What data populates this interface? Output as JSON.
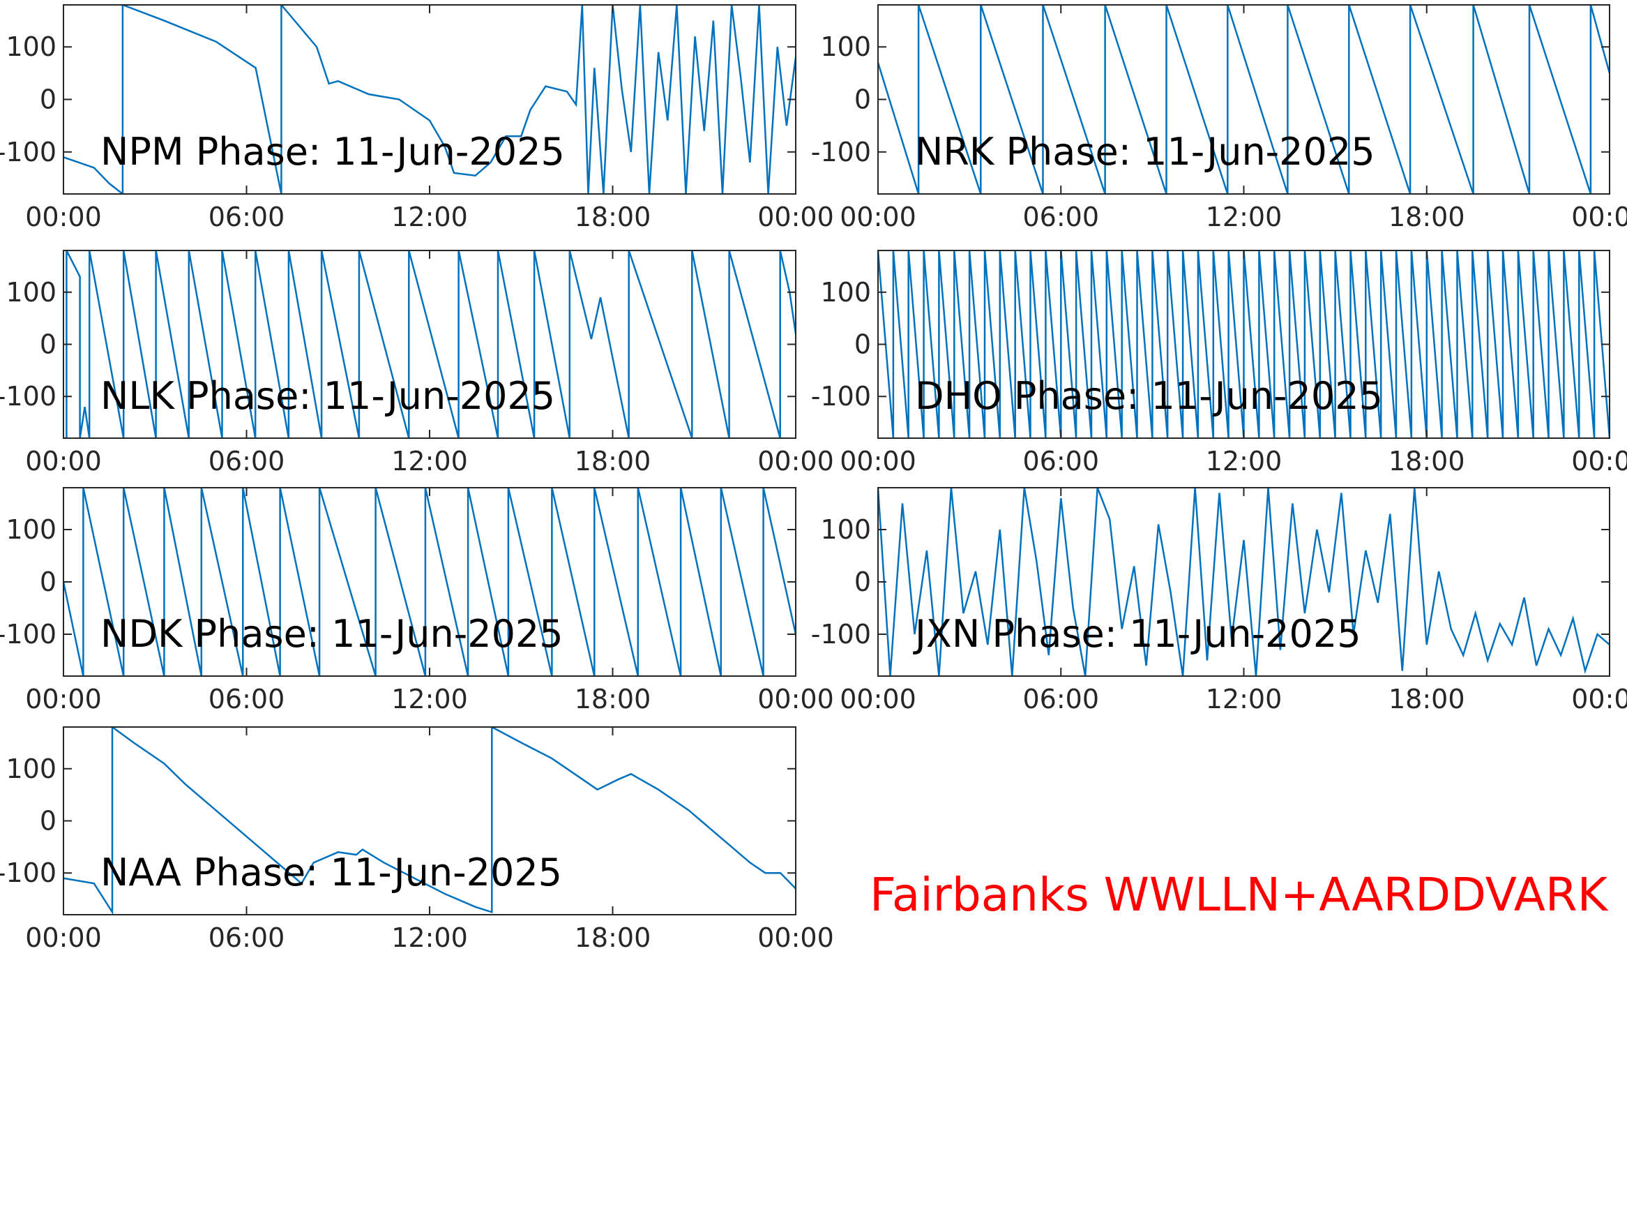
{
  "chart_data": [
    {
      "type": "line",
      "title": "NPM Phase: 11-Jun-2025",
      "color": "#0072BD",
      "x": [
        0,
        0.5,
        1,
        1.5,
        1.94,
        1.94,
        3.3,
        5,
        6.3,
        7.14,
        7.14,
        8.3,
        8.7,
        9,
        10,
        11,
        12,
        12.5,
        12.8,
        13.5,
        14,
        14.5,
        15,
        15.3,
        15.8,
        16.5,
        16.8,
        17,
        17.2,
        17.4,
        17.7,
        18,
        18.3,
        18.6,
        18.9,
        19.2,
        19.5,
        19.8,
        20.1,
        20.4,
        20.7,
        21,
        21.3,
        21.6,
        21.9,
        22.2,
        22.5,
        22.8,
        23.1,
        23.4,
        23.7,
        24
      ],
      "values": [
        -110,
        -120,
        -130,
        -160,
        -180,
        180,
        150,
        110,
        60,
        -180,
        180,
        100,
        30,
        35,
        10,
        0,
        -40,
        -90,
        -140,
        -145,
        -120,
        -70,
        -70,
        -20,
        25,
        15,
        -10,
        180,
        -180,
        60,
        -180,
        180,
        20,
        -100,
        180,
        -180,
        90,
        -40,
        180,
        -180,
        120,
        -60,
        150,
        -180,
        180,
        40,
        -120,
        180,
        -180,
        100,
        -50,
        80
      ],
      "xlim": [
        0,
        24
      ],
      "xticks": [
        {
          "value": 0,
          "label": "00:00"
        },
        {
          "value": 6,
          "label": "06:00"
        },
        {
          "value": 12,
          "label": "12:00"
        },
        {
          "value": 18,
          "label": "18:00"
        },
        {
          "value": 24,
          "label": "00:00"
        }
      ],
      "ylim": [
        -180,
        180
      ],
      "yticks": [
        -100,
        0,
        100
      ]
    },
    {
      "type": "line",
      "title": "NRK Phase: 11-Jun-2025",
      "color": "#0072BD",
      "x": [
        0,
        1.33,
        1.33,
        3.37,
        3.37,
        5.41,
        5.41,
        7.45,
        7.45,
        9.46,
        9.46,
        11.47,
        11.47,
        13.44,
        13.44,
        15.45,
        15.45,
        17.46,
        17.46,
        19.53,
        19.53,
        21.37,
        21.37,
        23.38,
        23.38,
        24
      ],
      "values": [
        70,
        -180,
        180,
        -180,
        180,
        -180,
        180,
        -180,
        180,
        -180,
        180,
        -180,
        180,
        -180,
        180,
        -180,
        180,
        -180,
        180,
        -180,
        180,
        -180,
        180,
        -180,
        180,
        50
      ],
      "xlim": [
        0,
        24
      ],
      "xticks": [
        {
          "value": 0,
          "label": "00:00"
        },
        {
          "value": 6,
          "label": "06:00"
        },
        {
          "value": 12,
          "label": "12:00"
        },
        {
          "value": 18,
          "label": "18:00"
        },
        {
          "value": 24,
          "label": "00:00"
        }
      ],
      "ylim": [
        -180,
        180
      ],
      "yticks": [
        -100,
        0,
        100
      ]
    },
    {
      "type": "line",
      "title": "NLK Phase: 11-Jun-2025",
      "color": "#0072BD",
      "x": [
        0,
        0.1,
        0.1,
        0.54,
        0.54,
        0.7,
        0.85,
        0.85,
        1.97,
        1.97,
        3.03,
        3.03,
        4.11,
        4.11,
        5.2,
        5.2,
        6.29,
        6.29,
        7.38,
        7.38,
        8.46,
        8.46,
        9.69,
        9.69,
        11.32,
        11.32,
        12.95,
        12.95,
        14.24,
        14.24,
        15.43,
        15.43,
        16.59,
        16.59,
        17.3,
        17.6,
        18.53,
        18.53,
        20.6,
        20.6,
        21.82,
        21.82,
        23.49,
        23.49,
        23.8,
        24
      ],
      "values": [
        -180,
        -180,
        180,
        130,
        -180,
        -120,
        -180,
        180,
        -180,
        180,
        -180,
        180,
        -180,
        180,
        -180,
        180,
        -180,
        180,
        -180,
        180,
        -180,
        180,
        -180,
        180,
        -180,
        180,
        -180,
        180,
        -180,
        180,
        -180,
        180,
        -180,
        180,
        10,
        90,
        -180,
        180,
        -180,
        180,
        -180,
        180,
        -180,
        180,
        100,
        20
      ],
      "xlim": [
        0,
        24
      ],
      "xticks": [
        {
          "value": 0,
          "label": "00:00"
        },
        {
          "value": 6,
          "label": "06:00"
        },
        {
          "value": 12,
          "label": "12:00"
        },
        {
          "value": 18,
          "label": "18:00"
        },
        {
          "value": 24,
          "label": "00:00"
        }
      ],
      "ylim": [
        -180,
        180
      ],
      "yticks": [
        -100,
        0,
        100
      ]
    },
    {
      "type": "line",
      "title": "DHO Phase: 11-Jun-2025",
      "color": "#0072BD",
      "x": [
        0,
        0.5,
        0.5,
        1,
        1,
        1.5,
        1.5,
        2,
        2,
        2.5,
        2.5,
        3,
        3,
        3.5,
        3.5,
        4,
        4,
        4.5,
        4.5,
        5,
        5,
        5.5,
        5.5,
        6,
        6,
        6.5,
        6.5,
        7,
        7,
        7.5,
        7.5,
        8,
        8,
        8.5,
        8.5,
        9,
        9,
        9.5,
        9.5,
        10,
        10,
        10.5,
        10.5,
        11,
        11,
        11.5,
        11.5,
        12,
        12,
        12.5,
        12.5,
        13,
        13,
        13.5,
        13.5,
        14,
        14,
        14.5,
        14.5,
        15,
        15,
        15.5,
        15.5,
        16,
        16,
        16.5,
        16.5,
        17,
        17,
        17.5,
        17.5,
        18,
        18,
        18.5,
        18.5,
        19,
        19,
        19.5,
        19.5,
        20,
        20,
        20.5,
        20.5,
        21,
        21,
        21.5,
        21.5,
        22,
        22,
        22.5,
        22.5,
        23,
        23,
        23.5,
        23.5,
        24
      ],
      "values": [
        180,
        -180,
        180,
        -180,
        180,
        -180,
        180,
        -180,
        180,
        -180,
        180,
        -180,
        180,
        -180,
        180,
        -180,
        180,
        -180,
        180,
        -180,
        180,
        -180,
        180,
        -180,
        180,
        -180,
        180,
        -180,
        180,
        -180,
        180,
        -180,
        180,
        -180,
        180,
        -180,
        180,
        -180,
        180,
        -180,
        180,
        -180,
        180,
        -180,
        180,
        -180,
        180,
        -180,
        180,
        -180,
        180,
        -180,
        180,
        -180,
        180,
        -180,
        180,
        -180,
        180,
        -180,
        180,
        -180,
        180,
        -180,
        180,
        -180,
        180,
        -180,
        180,
        -180,
        180,
        -180,
        180,
        -180,
        180,
        -180,
        180,
        -180,
        180,
        -180,
        180,
        -180,
        180,
        -180,
        180,
        -180,
        180,
        -180,
        180,
        -180,
        180,
        -180,
        180,
        -180,
        180,
        -180
      ],
      "xlim": [
        0,
        24
      ],
      "xticks": [
        {
          "value": 0,
          "label": "00:00"
        },
        {
          "value": 6,
          "label": "06:00"
        },
        {
          "value": 12,
          "label": "12:00"
        },
        {
          "value": 18,
          "label": "18:00"
        },
        {
          "value": 24,
          "label": "00:00"
        }
      ],
      "ylim": [
        -180,
        180
      ],
      "yticks": [
        -100,
        0,
        100
      ]
    },
    {
      "type": "line",
      "title": "NDK Phase: 11-Jun-2025",
      "color": "#0072BD",
      "x": [
        0,
        0.65,
        0.65,
        1.97,
        1.97,
        3.3,
        3.3,
        4.52,
        4.52,
        5.88,
        5.88,
        7.1,
        7.1,
        8.39,
        8.39,
        10.23,
        10.23,
        11.86,
        11.86,
        13.26,
        13.26,
        14.58,
        14.58,
        16.01,
        16.01,
        17.4,
        17.4,
        18.83,
        18.83,
        20.23,
        20.23,
        21.55,
        21.55,
        22.94,
        22.94,
        24
      ],
      "values": [
        0,
        -180,
        180,
        -180,
        180,
        -180,
        180,
        -180,
        180,
        -180,
        180,
        -180,
        180,
        -180,
        180,
        -180,
        180,
        -180,
        180,
        -180,
        180,
        -180,
        180,
        -180,
        180,
        -180,
        180,
        -180,
        180,
        -180,
        180,
        -180,
        180,
        -180,
        180,
        -100
      ],
      "xlim": [
        0,
        24
      ],
      "xticks": [
        {
          "value": 0,
          "label": "00:00"
        },
        {
          "value": 6,
          "label": "06:00"
        },
        {
          "value": 12,
          "label": "12:00"
        },
        {
          "value": 18,
          "label": "18:00"
        },
        {
          "value": 24,
          "label": "00:00"
        }
      ],
      "ylim": [
        -180,
        180
      ],
      "yticks": [
        -100,
        0,
        100
      ]
    },
    {
      "type": "line",
      "title": "JXN Phase: 11-Jun-2025",
      "color": "#0072BD",
      "x": [
        0,
        0.4,
        0.8,
        1.2,
        1.6,
        2,
        2.4,
        2.8,
        3.2,
        3.6,
        4,
        4.4,
        4.8,
        5.2,
        5.6,
        6,
        6.4,
        6.8,
        7.2,
        7.6,
        8,
        8.4,
        8.8,
        9.2,
        9.6,
        10,
        10.4,
        10.8,
        11.2,
        11.6,
        12,
        12.4,
        12.8,
        13.2,
        13.6,
        14,
        14.4,
        14.8,
        15.2,
        15.6,
        16,
        16.4,
        16.8,
        17.2,
        17.6,
        18,
        18.4,
        18.8,
        19.2,
        19.6,
        20,
        20.4,
        20.8,
        21.2,
        21.6,
        22,
        22.4,
        22.8,
        23.2,
        23.6,
        24
      ],
      "values": [
        180,
        -180,
        150,
        -100,
        60,
        -180,
        180,
        -60,
        20,
        -120,
        100,
        -180,
        180,
        40,
        -140,
        160,
        -50,
        -180,
        180,
        120,
        -90,
        30,
        -160,
        110,
        -20,
        -180,
        180,
        -150,
        170,
        -110,
        80,
        -180,
        180,
        -130,
        150,
        -60,
        100,
        -20,
        170,
        -100,
        60,
        -40,
        130,
        -170,
        180,
        -120,
        20,
        -90,
        -140,
        -60,
        -150,
        -80,
        -120,
        -30,
        -160,
        -90,
        -140,
        -70,
        -170,
        -100,
        -120
      ],
      "xlim": [
        0,
        24
      ],
      "xticks": [
        {
          "value": 0,
          "label": "00:00"
        },
        {
          "value": 6,
          "label": "06:00"
        },
        {
          "value": 12,
          "label": "12:00"
        },
        {
          "value": 18,
          "label": "18:00"
        },
        {
          "value": 24,
          "label": "00:00"
        }
      ],
      "ylim": [
        -180,
        180
      ],
      "yticks": [
        -100,
        0,
        100
      ]
    },
    {
      "type": "line",
      "title": "NAA Phase: 11-Jun-2025",
      "color": "#0072BD",
      "x": [
        0,
        1,
        1.6,
        1.6,
        2.3,
        3.3,
        4,
        5,
        6,
        7,
        7.6,
        7.8,
        8.2,
        9,
        9.6,
        9.8,
        10.5,
        11.5,
        12.5,
        13.5,
        14.04,
        14.04,
        15,
        16,
        17,
        17.5,
        18.2,
        18.6,
        19.5,
        20.5,
        21.5,
        22.5,
        23,
        23.5,
        24
      ],
      "values": [
        -110,
        -120,
        -175,
        180,
        150,
        110,
        70,
        20,
        -30,
        -80,
        -110,
        -120,
        -80,
        -60,
        -65,
        -55,
        -80,
        -110,
        -140,
        -165,
        -175,
        180,
        150,
        120,
        80,
        60,
        80,
        90,
        60,
        20,
        -30,
        -80,
        -100,
        -100,
        -130
      ],
      "xlim": [
        0,
        24
      ],
      "xticks": [
        {
          "value": 0,
          "label": "00:00"
        },
        {
          "value": 6,
          "label": "06:00"
        },
        {
          "value": 12,
          "label": "12:00"
        },
        {
          "value": 18,
          "label": "18:00"
        },
        {
          "value": 24,
          "label": "00:00"
        }
      ],
      "ylim": [
        -180,
        180
      ],
      "yticks": [
        -100,
        0,
        100
      ]
    }
  ],
  "figure_annotation": "Fairbanks WWLLN+AARDDVARK"
}
